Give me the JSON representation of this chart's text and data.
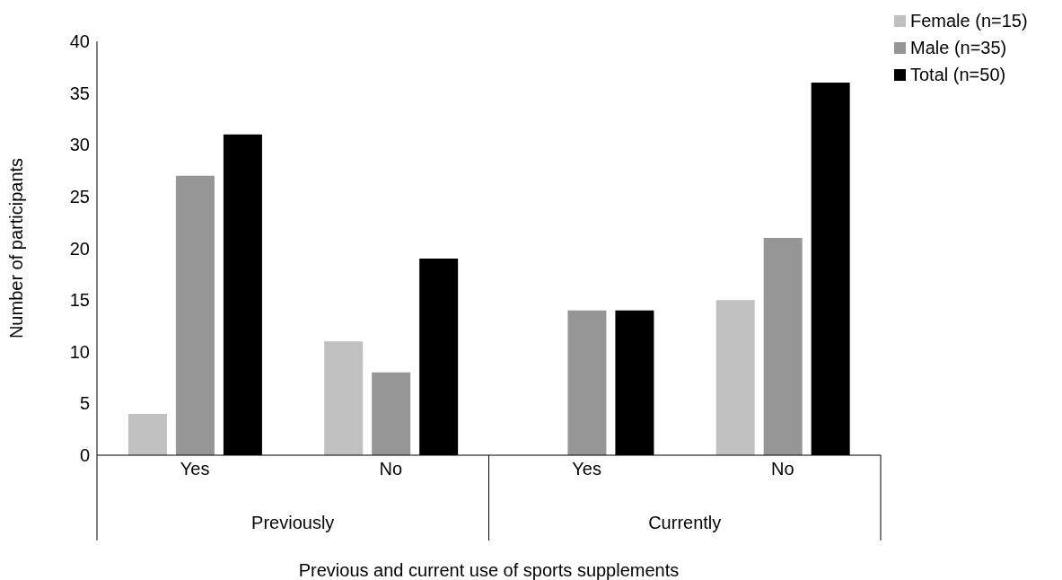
{
  "chart_data": {
    "type": "bar",
    "xlabel": "Previous and current use of sports supplements",
    "ylabel": "Number of participants",
    "categories": [
      "Yes",
      "No",
      "Yes",
      "No"
    ],
    "annotations": [
      "Previously",
      "Currently"
    ],
    "series": [
      {
        "name": "Female (n=15)",
        "color": "#c0c0c0",
        "values": [
          4,
          11,
          0,
          15
        ]
      },
      {
        "name": "Male (n=35)",
        "color": "#969696",
        "values": [
          27,
          8,
          14,
          21
        ]
      },
      {
        "name": "Total (n=50)",
        "color": "#000000",
        "values": [
          31,
          19,
          14,
          36
        ]
      }
    ],
    "ylim": [
      0,
      40
    ],
    "yticks": [
      0,
      5,
      10,
      15,
      20,
      25,
      30,
      35,
      40
    ],
    "grid": false,
    "legend": "top right"
  }
}
